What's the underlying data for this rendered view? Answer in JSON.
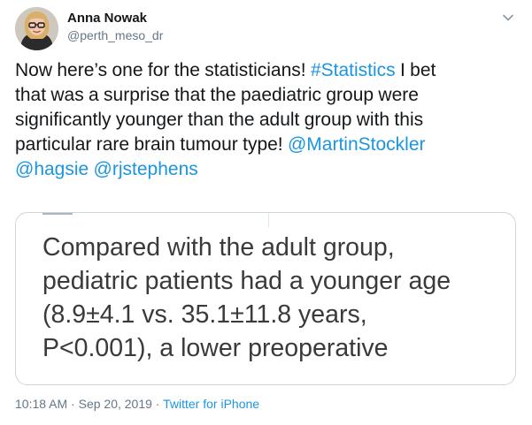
{
  "author": {
    "name": "Anna Nowak",
    "handle": "@perth_meso_dr"
  },
  "tweet": {
    "lines": [
      [
        {
          "text": "Now here’s one for the statisticians! ",
          "link": false
        },
        {
          "text": "#Statistics",
          "link": true
        },
        {
          "text": " I bet",
          "link": false
        }
      ],
      [
        {
          "text": "that was a surprise that the paediatric group were",
          "link": false
        }
      ],
      [
        {
          "text": "significantly younger than the adult group with this",
          "link": false
        }
      ],
      [
        {
          "text": "particular rare brain tumour type! ",
          "link": false
        },
        {
          "text": "@MartinStockler",
          "link": true
        }
      ],
      [
        {
          "text": " @hagsie",
          "link": true
        },
        {
          "text": " ",
          "link": false
        },
        {
          "text": "@rjstephens",
          "link": true
        }
      ]
    ]
  },
  "media": {
    "excerpt_lines": [
      "Compared with the adult group,",
      "pediatric patients had a younger age",
      "(8.9±4.1 vs. 35.1±11.8 years,",
      "P<0.001), a lower preoperative"
    ]
  },
  "meta": {
    "time": "10:18 AM",
    "separator": "·",
    "date": "Sep 20, 2019",
    "source": "Twitter for iPhone"
  },
  "icons": {
    "caret": "chevron-down-icon"
  },
  "colors": {
    "link": "#1b95e0",
    "secondary_text": "#657786",
    "border": "#ccd6dd"
  }
}
